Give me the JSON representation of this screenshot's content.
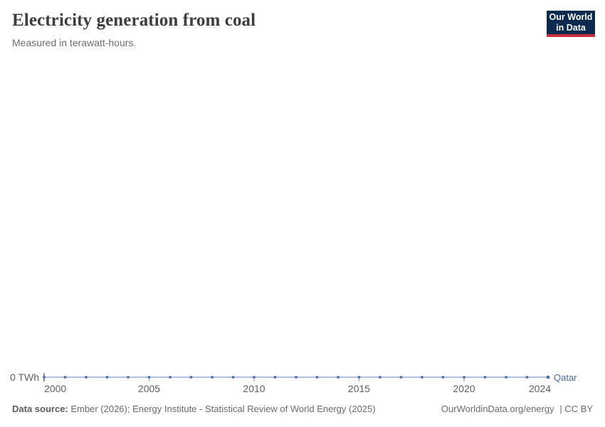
{
  "header": {
    "title": "Electricity generation from coal",
    "subtitle": "Measured in terawatt-hours."
  },
  "logo": {
    "line1": "Our World",
    "line2": "in Data",
    "bg_color": "#0c2950",
    "accent_color": "#ca303c"
  },
  "footer": {
    "source_label": "Data source:",
    "source_text": "Ember (2026); Energy Institute - Statistical Review of World Energy (2025)",
    "link": "OurWorldinData.org/energy",
    "license": "| CC BY"
  },
  "chart_data": {
    "type": "line",
    "title": "Electricity generation from coal",
    "subtitle": "Measured in terawatt-hours.",
    "x": [
      2000,
      2001,
      2002,
      2003,
      2004,
      2005,
      2006,
      2007,
      2008,
      2009,
      2010,
      2011,
      2012,
      2013,
      2014,
      2015,
      2016,
      2017,
      2018,
      2019,
      2020,
      2021,
      2022,
      2023,
      2024
    ],
    "series": [
      {
        "name": "Qatar",
        "color": "#4a6cab",
        "values": [
          0,
          0,
          0,
          0,
          0,
          0,
          0,
          0,
          0,
          0,
          0,
          0,
          0,
          0,
          0,
          0,
          0,
          0,
          0,
          0,
          0,
          0,
          0,
          0,
          0
        ]
      }
    ],
    "x_tick_years": [
      2000,
      2005,
      2010,
      2015,
      2020,
      2024
    ],
    "x_tick_labels": [
      "2000",
      "2005",
      "2010",
      "2015",
      "2020",
      "2024"
    ],
    "y_axis_tick": "0 TWh",
    "xlim": [
      2000,
      2024
    ],
    "ylim": [
      0,
      0
    ],
    "grid": false,
    "legend_position": "end-of-line",
    "line_color": "#b1c2de",
    "marker_color": "#5070a5",
    "tick_color": "#9aabc4",
    "axis_start_tick_color": "#5a6f96",
    "axis_text_color": "#606060"
  }
}
